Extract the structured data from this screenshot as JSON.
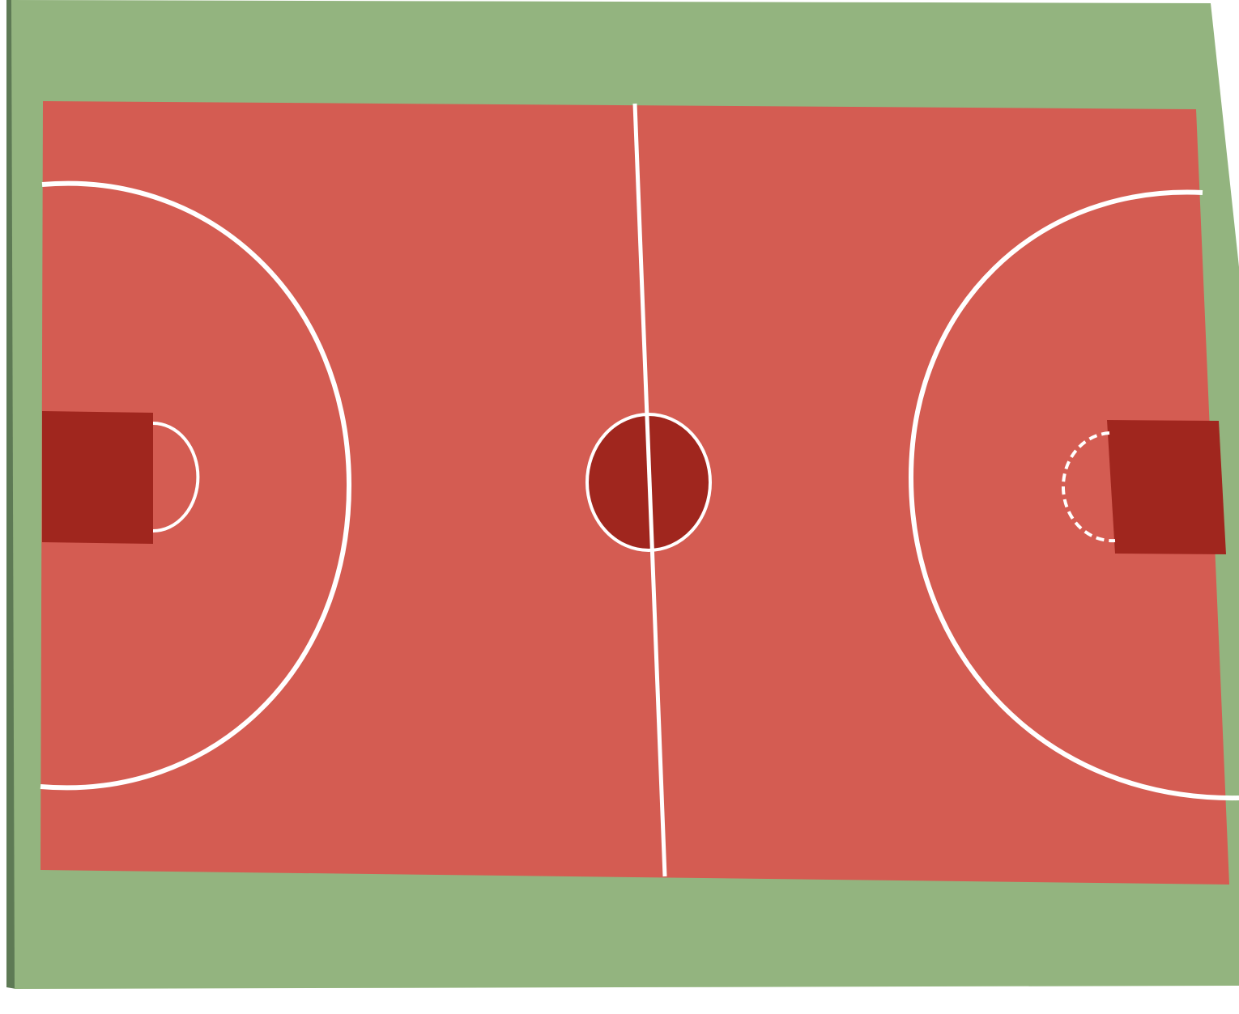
{
  "scene": {
    "subject": "basketball-court-top-view"
  },
  "colors": {
    "background": "#ffffff",
    "surround": "#93b47f",
    "surround_edge": "#5e7a55",
    "court": "#d45c52",
    "key": "#a0261e",
    "center_circle_fill": "#a0261e",
    "lines": "#ffffff"
  },
  "icons": {
    "left_key": "left-key-rectangle",
    "right_key": "right-key-rectangle",
    "center_circle": "center-circle",
    "half_court_line": "half-court-line",
    "left_arc": "left-three-point-arc",
    "right_arc": "right-three-point-arc"
  }
}
